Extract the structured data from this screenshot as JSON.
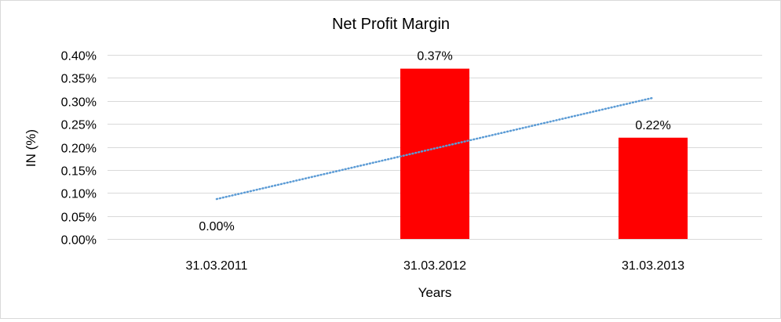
{
  "chart_data": {
    "type": "bar",
    "title": "Net Profit Margin",
    "xlabel": "Years",
    "ylabel": "IN (%)",
    "categories": [
      "31.03.2011",
      "31.03.2012",
      "31.03.2013"
    ],
    "series": [
      {
        "values": [
          0.0,
          0.37,
          0.22
        ],
        "data_labels": [
          "0.00%",
          "0.37%",
          "0.22%"
        ],
        "color": "#ff0000"
      }
    ],
    "trendline": {
      "type": "linear",
      "style": "dotted",
      "color": "#5b9bd5",
      "start_value": 0.0867,
      "end_value": 0.3067
    },
    "ylim": [
      0,
      0.4
    ],
    "yticks": [
      0,
      0.05,
      0.1,
      0.15,
      0.2,
      0.25,
      0.3,
      0.35,
      0.4
    ],
    "ytick_labels": [
      "0.00%",
      "0.05%",
      "0.10%",
      "0.15%",
      "0.20%",
      "0.25%",
      "0.30%",
      "0.35%",
      "0.40%"
    ],
    "grid": true,
    "legend": "none"
  }
}
